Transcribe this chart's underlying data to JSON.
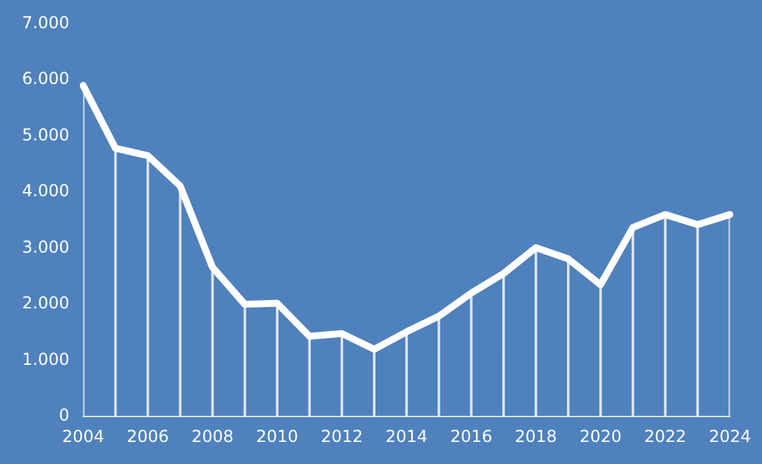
{
  "chart_data": {
    "type": "line",
    "categories": [
      "2004",
      null,
      "2006",
      null,
      "2008",
      null,
      "2010",
      null,
      "2012",
      null,
      "2014",
      null,
      "2016",
      null,
      "2018",
      null,
      "2020",
      null,
      "2022",
      null,
      "2024"
    ],
    "series": [
      {
        "color": "#ffffff",
        "values": [
          5900,
          4780,
          4650,
          4110,
          2660,
          2000,
          2020,
          1430,
          1480,
          1200,
          1510,
          1790,
          2200,
          2550,
          3010,
          2810,
          2350,
          3370,
          3600,
          3420,
          3600
        ]
      },
      {
        "type": "bar",
        "color": "#dce6f2",
        "values": [
          5900,
          4780,
          4650,
          4110,
          2660,
          2000,
          2020,
          1430,
          1480,
          1200,
          1510,
          1790,
          2200,
          2550,
          3010,
          2810,
          2350,
          3370,
          3600,
          3420,
          3600
        ]
      }
    ],
    "ylim": [
      0,
      7000
    ],
    "yticks": [
      {
        "value": 0,
        "label": "0"
      },
      {
        "value": 1000,
        "label": "1.000"
      },
      {
        "value": 2000,
        "label": "2.000"
      },
      {
        "value": 3000,
        "label": "3.000"
      },
      {
        "value": 4000,
        "label": "4.000"
      },
      {
        "value": 5000,
        "label": "5.000"
      },
      {
        "value": 6000,
        "label": "6.000"
      },
      {
        "value": 7000,
        "label": "7.000"
      }
    ],
    "grid": false,
    "legend": false,
    "marker": "none",
    "line_style": "solid"
  }
}
